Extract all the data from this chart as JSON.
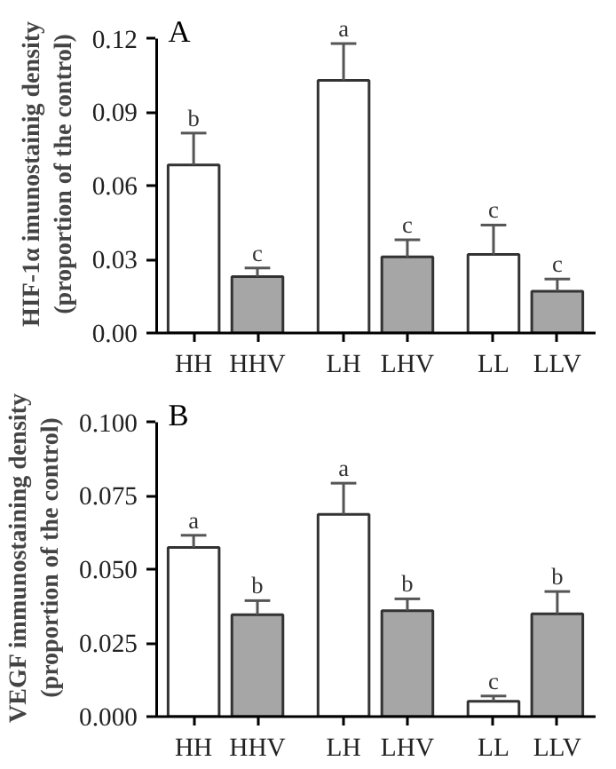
{
  "chart_data": [
    {
      "type": "bar",
      "title": "A",
      "ylabel": "HIF-1α imunostainig density\n(proportion of the control)",
      "categories": [
        "HH",
        "HHV",
        "LH",
        "LHV",
        "LL",
        "LLV"
      ],
      "values": [
        0.0685,
        0.023,
        0.103,
        0.031,
        0.032,
        0.017
      ],
      "colors": [
        "#ffffff",
        "#a6a6a6",
        "#ffffff",
        "#a6a6a6",
        "#ffffff",
        "#a6a6a6"
      ],
      "errors": [
        [
          0.0685,
          0.0815
        ],
        [
          0.023,
          0.0265
        ],
        [
          0.103,
          0.118
        ],
        [
          0.031,
          0.038
        ],
        [
          0.032,
          0.044
        ],
        [
          0.017,
          0.022
        ]
      ],
      "ylim": [
        0,
        0.12
      ],
      "yticks": [
        {
          "value": 0,
          "label": "0.00"
        },
        0.03,
        0.06,
        0.09,
        0.12
      ],
      "annotations": [
        {
          "text": "b",
          "x": "HH",
          "y": 0.0815
        },
        {
          "text": "c",
          "x": "HHV",
          "y": 0.0265
        },
        {
          "text": "a",
          "x": "LH",
          "y": 0.118
        },
        {
          "text": "c",
          "x": "LHV",
          "y": 0.038
        },
        {
          "text": "c",
          "x": "LL",
          "y": 0.044
        },
        {
          "text": "c",
          "x": "LLV",
          "y": 0.022
        }
      ]
    },
    {
      "type": "bar",
      "title": "B",
      "ylabel": "VEGF immunostaining density\n(proportion of the control)",
      "categories": [
        "HH",
        "HHV",
        "LH",
        "LHV",
        "LL",
        "LLV"
      ],
      "values": [
        0.0575,
        0.0346,
        0.0687,
        0.036,
        0.0052,
        0.0349
      ],
      "colors": [
        "#ffffff",
        "#a6a6a6",
        "#ffffff",
        "#a6a6a6",
        "#ffffff",
        "#a6a6a6"
      ],
      "errors": [
        [
          0.0575,
          0.0616
        ],
        [
          0.0346,
          0.0394
        ],
        [
          0.0687,
          0.0793
        ],
        [
          0.036,
          0.04
        ],
        [
          0.0052,
          0.007
        ],
        [
          0.0349,
          0.0425
        ]
      ],
      "ylim": [
        0,
        0.1
      ],
      "yticks": [
        {
          "value": 0,
          "label": "0.000"
        },
        {
          "value": 0.025,
          "label": "0.025"
        },
        {
          "value": 0.05,
          "label": "0.050"
        },
        {
          "value": 0.075,
          "label": "0.075"
        },
        {
          "value": 0.1,
          "label": "0.100"
        }
      ],
      "annotations": [
        {
          "text": "a",
          "x": "HH",
          "y": 0.0616
        },
        {
          "text": "b",
          "x": "HHV",
          "y": 0.0394
        },
        {
          "text": "a",
          "x": "LH",
          "y": 0.0793
        },
        {
          "text": "b",
          "x": "LHV",
          "y": 0.04
        },
        {
          "text": "c",
          "x": "LL",
          "y": 0.007
        },
        {
          "text": "b",
          "x": "LLV",
          "y": 0.0425
        }
      ]
    }
  ]
}
